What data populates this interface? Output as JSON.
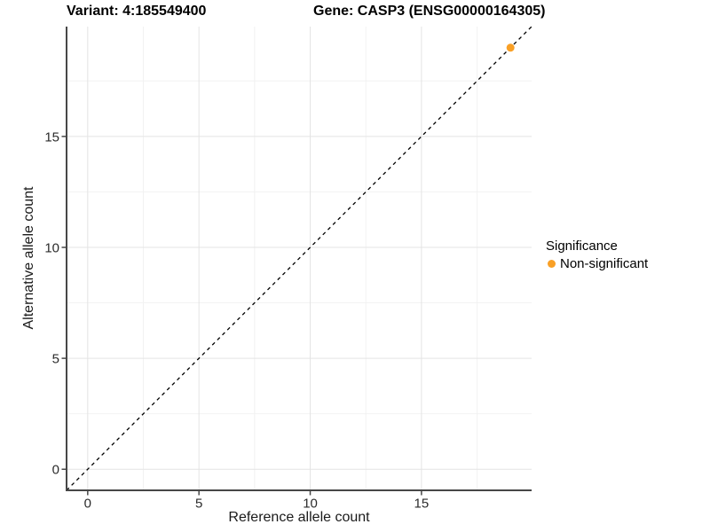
{
  "header": {
    "variant_title": "Variant: 4:185549400",
    "gene_title": "Gene: CASP3 (ENSG00000164305)"
  },
  "chart_data": {
    "type": "scatter",
    "xlabel": "Reference allele count",
    "ylabel": "Alternative allele count",
    "xlim": [
      -0.95,
      19.95
    ],
    "ylim": [
      -0.95,
      19.95
    ],
    "x_major_ticks": [
      0,
      5,
      10,
      15
    ],
    "y_major_ticks": [
      0,
      5,
      10,
      15
    ],
    "x_minor_ticks": [
      2.5,
      7.5,
      12.5,
      17.5
    ],
    "y_minor_ticks": [
      2.5,
      7.5,
      12.5,
      17.5
    ],
    "grid": "major and minor gridlines on white panel",
    "series": [
      {
        "name": "Non-significant",
        "color": "#F9A026",
        "points": [
          {
            "x": 19,
            "y": 19
          }
        ]
      }
    ],
    "reference_line": {
      "kind": "identity",
      "slope": 1,
      "intercept": 0,
      "style": "dashed",
      "color": "#000000"
    },
    "legend": {
      "title": "Significance",
      "position": "right",
      "entries": [
        {
          "label": "Non-significant",
          "color": "#F9A026"
        }
      ]
    },
    "colors": {
      "grid_major": "#e4e4e4",
      "grid_minor": "#f2f2f2",
      "axis_line": "#474747",
      "tick_label": "#2b2b2b",
      "text": "#1a1a1a"
    }
  }
}
